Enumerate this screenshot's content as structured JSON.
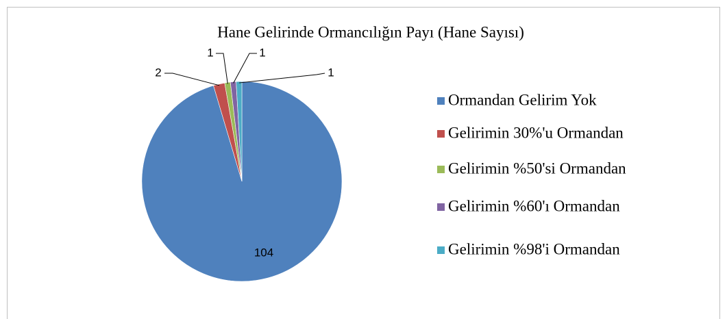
{
  "chart_data": {
    "type": "pie",
    "title": "Hane Gelirinde Ormancılığın Payı (Hane Sayısı)",
    "categories": [
      "Ormandan Gelirim Yok",
      "Gelirimin 30%'u Ormandan",
      "Gelirimin %50'si Ormandan",
      "Gelirimin %60'ı Ormandan",
      "Gelirimin %98'i Ormandan"
    ],
    "values": [
      104,
      2,
      1,
      1,
      1
    ],
    "colors": [
      "#4f81bd",
      "#c0504d",
      "#9bbb59",
      "#8064a2",
      "#4bacc6"
    ],
    "legend": "right"
  }
}
